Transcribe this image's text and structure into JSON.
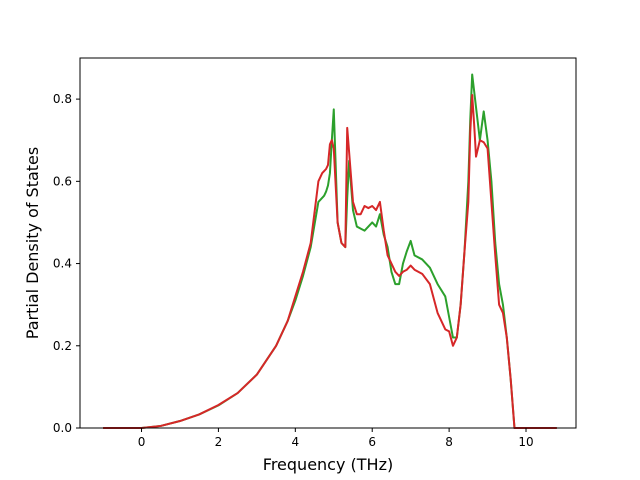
{
  "chart_data": {
    "type": "line",
    "xlabel": "Frequency (THz)",
    "ylabel": "Partial Density of States",
    "xlim": [
      -1.6,
      11.3
    ],
    "ylim": [
      0.0,
      0.9
    ],
    "xticks": [
      0,
      2,
      4,
      6,
      8,
      10
    ],
    "yticks": [
      0.0,
      0.2,
      0.4,
      0.6,
      0.8
    ],
    "xtick_labels": [
      "0",
      "2",
      "4",
      "6",
      "8",
      "10"
    ],
    "ytick_labels": [
      "0.0",
      "0.2",
      "0.4",
      "0.6",
      "0.8"
    ],
    "grid": false,
    "legend": "none",
    "series": [
      {
        "color": "#2ca02c",
        "x": [
          -1.0,
          -0.5,
          0.0,
          0.5,
          1.0,
          1.5,
          2.0,
          2.5,
          3.0,
          3.5,
          3.8,
          4.0,
          4.2,
          4.4,
          4.6,
          4.7,
          4.75,
          4.8,
          4.85,
          4.9,
          4.95,
          5.0,
          5.1,
          5.2,
          5.3,
          5.35,
          5.4,
          5.5,
          5.6,
          5.7,
          5.8,
          5.9,
          6.0,
          6.1,
          6.2,
          6.3,
          6.4,
          6.5,
          6.6,
          6.7,
          6.8,
          6.9,
          7.0,
          7.1,
          7.3,
          7.5,
          7.7,
          7.9,
          8.0,
          8.1,
          8.2,
          8.3,
          8.4,
          8.5,
          8.55,
          8.6,
          8.65,
          8.7,
          8.8,
          8.9,
          9.0,
          9.1,
          9.2,
          9.3,
          9.4,
          9.5,
          9.6,
          9.7,
          9.8,
          9.9,
          10.0,
          10.3,
          10.8
        ],
        "y": [
          0.0,
          0.0,
          0.0,
          0.005,
          0.017,
          0.033,
          0.055,
          0.085,
          0.13,
          0.2,
          0.26,
          0.31,
          0.37,
          0.44,
          0.55,
          0.56,
          0.565,
          0.575,
          0.59,
          0.62,
          0.7,
          0.775,
          0.5,
          0.45,
          0.44,
          0.56,
          0.65,
          0.53,
          0.49,
          0.485,
          0.48,
          0.49,
          0.5,
          0.49,
          0.52,
          0.47,
          0.44,
          0.38,
          0.35,
          0.35,
          0.4,
          0.43,
          0.455,
          0.42,
          0.41,
          0.39,
          0.35,
          0.32,
          0.27,
          0.22,
          0.22,
          0.3,
          0.43,
          0.6,
          0.75,
          0.86,
          0.82,
          0.78,
          0.7,
          0.77,
          0.7,
          0.6,
          0.45,
          0.35,
          0.3,
          0.22,
          0.12,
          0.0,
          0.0,
          0.0,
          0.0,
          0.0,
          0.0
        ]
      },
      {
        "color": "#d62728",
        "x": [
          -1.0,
          -0.5,
          0.0,
          0.5,
          1.0,
          1.5,
          2.0,
          2.5,
          3.0,
          3.5,
          3.8,
          4.0,
          4.2,
          4.4,
          4.6,
          4.7,
          4.75,
          4.8,
          4.85,
          4.9,
          4.95,
          5.0,
          5.1,
          5.2,
          5.3,
          5.35,
          5.4,
          5.5,
          5.6,
          5.7,
          5.8,
          5.9,
          6.0,
          6.1,
          6.2,
          6.3,
          6.4,
          6.5,
          6.6,
          6.7,
          6.8,
          6.9,
          7.0,
          7.1,
          7.3,
          7.5,
          7.7,
          7.9,
          8.0,
          8.1,
          8.2,
          8.3,
          8.4,
          8.5,
          8.55,
          8.6,
          8.65,
          8.7,
          8.8,
          8.9,
          9.0,
          9.1,
          9.2,
          9.3,
          9.4,
          9.5,
          9.6,
          9.7,
          9.8,
          9.9,
          10.0,
          10.3,
          10.8
        ],
        "y": [
          0.0,
          0.0,
          0.0,
          0.005,
          0.017,
          0.033,
          0.056,
          0.085,
          0.13,
          0.2,
          0.26,
          0.32,
          0.38,
          0.45,
          0.6,
          0.62,
          0.625,
          0.63,
          0.64,
          0.69,
          0.7,
          0.68,
          0.5,
          0.45,
          0.44,
          0.73,
          0.67,
          0.55,
          0.52,
          0.52,
          0.54,
          0.535,
          0.54,
          0.53,
          0.55,
          0.48,
          0.42,
          0.4,
          0.38,
          0.37,
          0.38,
          0.385,
          0.395,
          0.385,
          0.375,
          0.35,
          0.28,
          0.24,
          0.235,
          0.2,
          0.22,
          0.3,
          0.43,
          0.55,
          0.72,
          0.81,
          0.74,
          0.66,
          0.7,
          0.695,
          0.68,
          0.55,
          0.42,
          0.3,
          0.28,
          0.22,
          0.12,
          0.0,
          0.0,
          0.0,
          0.0,
          0.0,
          0.0
        ]
      }
    ]
  }
}
